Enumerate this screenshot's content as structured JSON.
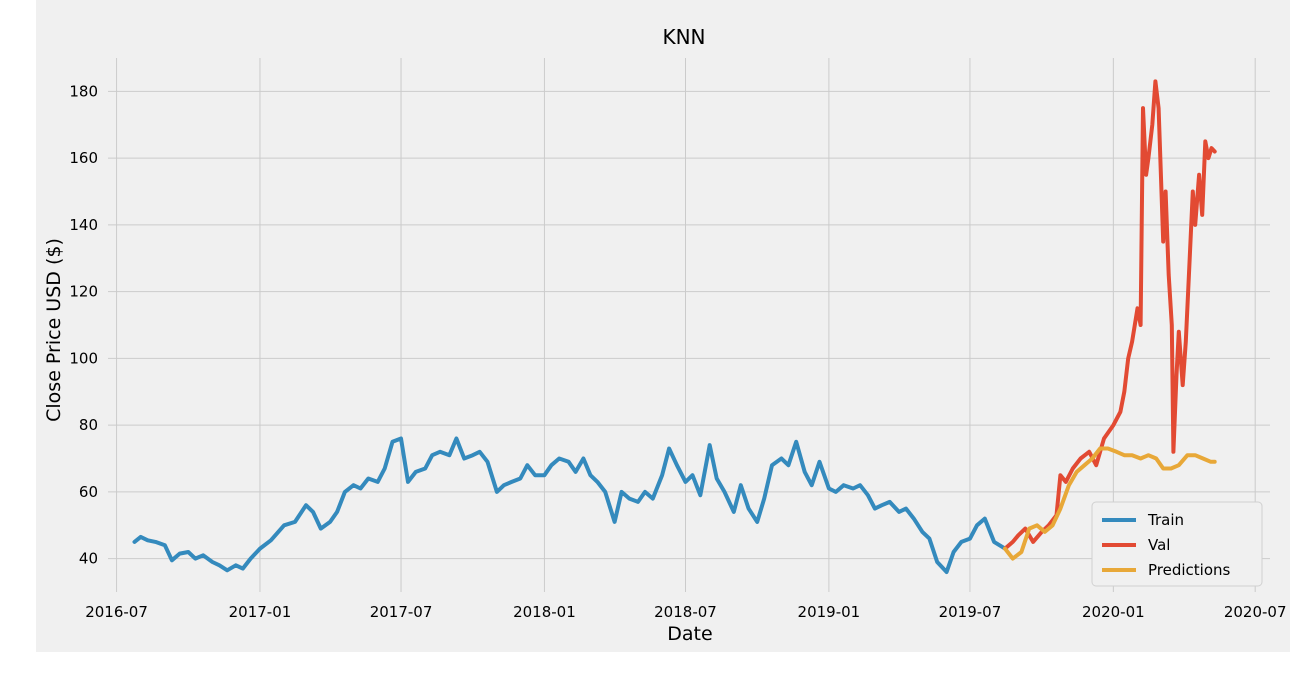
{
  "chart_data": {
    "type": "line",
    "title": "KNN",
    "xlabel": "Date",
    "ylabel": "Close Price USD ($)",
    "x_ticks": [
      "2016-07",
      "2017-01",
      "2017-07",
      "2018-01",
      "2018-07",
      "2019-01",
      "2019-07",
      "2020-01",
      "2020-07"
    ],
    "y_ticks": [
      40,
      60,
      80,
      100,
      120,
      140,
      160,
      180
    ],
    "ylim": [
      30,
      190
    ],
    "xlim": [
      "2016-06-20",
      "2020-07-20"
    ],
    "grid": true,
    "legend_position": "lower-right",
    "series": [
      {
        "name": "Train",
        "color": "#348ABD",
        "points": [
          [
            "2016-07-24",
            45
          ],
          [
            "2016-08-01",
            46.5
          ],
          [
            "2016-08-10",
            45.5
          ],
          [
            "2016-08-20",
            45
          ],
          [
            "2016-09-01",
            44
          ],
          [
            "2016-09-10",
            39.5
          ],
          [
            "2016-09-20",
            41.5
          ],
          [
            "2016-10-01",
            42
          ],
          [
            "2016-10-10",
            40
          ],
          [
            "2016-10-20",
            41
          ],
          [
            "2016-11-01",
            39
          ],
          [
            "2016-11-10",
            38
          ],
          [
            "2016-11-20",
            36.5
          ],
          [
            "2016-12-01",
            38
          ],
          [
            "2016-12-10",
            37
          ],
          [
            "2016-12-20",
            40
          ],
          [
            "2017-01-01",
            43
          ],
          [
            "2017-01-15",
            45.5
          ],
          [
            "2017-02-01",
            50
          ],
          [
            "2017-02-15",
            51
          ],
          [
            "2017-03-01",
            56
          ],
          [
            "2017-03-10",
            54
          ],
          [
            "2017-03-20",
            49
          ],
          [
            "2017-04-01",
            51
          ],
          [
            "2017-04-10",
            54
          ],
          [
            "2017-04-20",
            60
          ],
          [
            "2017-05-01",
            62
          ],
          [
            "2017-05-10",
            61
          ],
          [
            "2017-05-20",
            64
          ],
          [
            "2017-06-01",
            63
          ],
          [
            "2017-06-10",
            67
          ],
          [
            "2017-06-20",
            75
          ],
          [
            "2017-07-01",
            76
          ],
          [
            "2017-07-10",
            63
          ],
          [
            "2017-07-20",
            66
          ],
          [
            "2017-08-01",
            67
          ],
          [
            "2017-08-10",
            71
          ],
          [
            "2017-08-20",
            72
          ],
          [
            "2017-09-01",
            71
          ],
          [
            "2017-09-10",
            76
          ],
          [
            "2017-09-20",
            70
          ],
          [
            "2017-10-01",
            71
          ],
          [
            "2017-10-10",
            72
          ],
          [
            "2017-10-20",
            69
          ],
          [
            "2017-11-01",
            60
          ],
          [
            "2017-11-10",
            62
          ],
          [
            "2017-11-20",
            63
          ],
          [
            "2017-12-01",
            64
          ],
          [
            "2017-12-10",
            68
          ],
          [
            "2017-12-20",
            65
          ],
          [
            "2018-01-01",
            65
          ],
          [
            "2018-01-10",
            68
          ],
          [
            "2018-01-20",
            70
          ],
          [
            "2018-02-01",
            69
          ],
          [
            "2018-02-10",
            66
          ],
          [
            "2018-02-20",
            70
          ],
          [
            "2018-03-01",
            65
          ],
          [
            "2018-03-10",
            63
          ],
          [
            "2018-03-20",
            60
          ],
          [
            "2018-04-01",
            51
          ],
          [
            "2018-04-10",
            60
          ],
          [
            "2018-04-20",
            58
          ],
          [
            "2018-05-01",
            57
          ],
          [
            "2018-05-10",
            60
          ],
          [
            "2018-05-20",
            58
          ],
          [
            "2018-06-01",
            65
          ],
          [
            "2018-06-10",
            73
          ],
          [
            "2018-06-20",
            68
          ],
          [
            "2018-07-01",
            63
          ],
          [
            "2018-07-10",
            65
          ],
          [
            "2018-07-20",
            59
          ],
          [
            "2018-08-01",
            74
          ],
          [
            "2018-08-10",
            64
          ],
          [
            "2018-08-20",
            60
          ],
          [
            "2018-09-01",
            54
          ],
          [
            "2018-09-10",
            62
          ],
          [
            "2018-09-20",
            55
          ],
          [
            "2018-10-01",
            51
          ],
          [
            "2018-10-10",
            58
          ],
          [
            "2018-10-20",
            68
          ],
          [
            "2018-11-01",
            70
          ],
          [
            "2018-11-10",
            68
          ],
          [
            "2018-11-20",
            75
          ],
          [
            "2018-12-01",
            66
          ],
          [
            "2018-12-10",
            62
          ],
          [
            "2018-12-20",
            69
          ],
          [
            "2019-01-01",
            61
          ],
          [
            "2019-01-10",
            60
          ],
          [
            "2019-01-20",
            62
          ],
          [
            "2019-02-01",
            61
          ],
          [
            "2019-02-10",
            62
          ],
          [
            "2019-02-20",
            59
          ],
          [
            "2019-03-01",
            55
          ],
          [
            "2019-03-10",
            56
          ],
          [
            "2019-03-20",
            57
          ],
          [
            "2019-04-01",
            54
          ],
          [
            "2019-04-10",
            55
          ],
          [
            "2019-04-20",
            52
          ],
          [
            "2019-05-01",
            48
          ],
          [
            "2019-05-10",
            46
          ],
          [
            "2019-05-20",
            39
          ],
          [
            "2019-06-01",
            36
          ],
          [
            "2019-06-10",
            42
          ],
          [
            "2019-06-20",
            45
          ],
          [
            "2019-07-01",
            46
          ],
          [
            "2019-07-10",
            50
          ],
          [
            "2019-07-20",
            52
          ],
          [
            "2019-08-01",
            45
          ],
          [
            "2019-08-15",
            43
          ]
        ]
      },
      {
        "name": "Val",
        "color": "#E24A33",
        "points": [
          [
            "2019-08-15",
            43
          ],
          [
            "2019-08-25",
            45
          ],
          [
            "2019-09-01",
            47
          ],
          [
            "2019-09-10",
            49
          ],
          [
            "2019-09-20",
            45
          ],
          [
            "2019-10-01",
            48
          ],
          [
            "2019-10-10",
            50
          ],
          [
            "2019-10-20",
            53
          ],
          [
            "2019-10-25",
            65
          ],
          [
            "2019-11-01",
            63
          ],
          [
            "2019-11-10",
            67
          ],
          [
            "2019-11-20",
            70
          ],
          [
            "2019-12-01",
            72
          ],
          [
            "2019-12-10",
            68
          ],
          [
            "2019-12-20",
            76
          ],
          [
            "2020-01-01",
            80
          ],
          [
            "2020-01-10",
            84
          ],
          [
            "2020-01-15",
            90
          ],
          [
            "2020-01-20",
            100
          ],
          [
            "2020-01-25",
            105
          ],
          [
            "2020-02-01",
            115
          ],
          [
            "2020-02-05",
            110
          ],
          [
            "2020-02-08",
            175
          ],
          [
            "2020-02-12",
            155
          ],
          [
            "2020-02-15",
            160
          ],
          [
            "2020-02-20",
            170
          ],
          [
            "2020-02-24",
            183
          ],
          [
            "2020-02-28",
            175
          ],
          [
            "2020-03-05",
            135
          ],
          [
            "2020-03-08",
            150
          ],
          [
            "2020-03-12",
            125
          ],
          [
            "2020-03-16",
            110
          ],
          [
            "2020-03-18",
            72
          ],
          [
            "2020-03-22",
            95
          ],
          [
            "2020-03-25",
            108
          ],
          [
            "2020-03-30",
            92
          ],
          [
            "2020-04-03",
            105
          ],
          [
            "2020-04-08",
            130
          ],
          [
            "2020-04-12",
            150
          ],
          [
            "2020-04-15",
            140
          ],
          [
            "2020-04-20",
            155
          ],
          [
            "2020-04-24",
            143
          ],
          [
            "2020-04-28",
            165
          ],
          [
            "2020-05-02",
            160
          ],
          [
            "2020-05-06",
            163
          ],
          [
            "2020-05-10",
            162
          ]
        ]
      },
      {
        "name": "Predictions",
        "color": "#E8A838",
        "points": [
          [
            "2019-08-15",
            43
          ],
          [
            "2019-08-25",
            40
          ],
          [
            "2019-09-05",
            42
          ],
          [
            "2019-09-15",
            49
          ],
          [
            "2019-09-25",
            50
          ],
          [
            "2019-10-05",
            48
          ],
          [
            "2019-10-15",
            50
          ],
          [
            "2019-10-25",
            55
          ],
          [
            "2019-11-05",
            62
          ],
          [
            "2019-11-15",
            66
          ],
          [
            "2019-11-25",
            68
          ],
          [
            "2019-12-05",
            70
          ],
          [
            "2019-12-15",
            73
          ],
          [
            "2019-12-25",
            73
          ],
          [
            "2020-01-05",
            72
          ],
          [
            "2020-01-15",
            71
          ],
          [
            "2020-01-25",
            71
          ],
          [
            "2020-02-05",
            70
          ],
          [
            "2020-02-15",
            71
          ],
          [
            "2020-02-25",
            70
          ],
          [
            "2020-03-05",
            67
          ],
          [
            "2020-03-15",
            67
          ],
          [
            "2020-03-25",
            68
          ],
          [
            "2020-04-05",
            71
          ],
          [
            "2020-04-15",
            71
          ],
          [
            "2020-04-25",
            70
          ],
          [
            "2020-05-05",
            69
          ],
          [
            "2020-05-10",
            69
          ]
        ]
      }
    ]
  }
}
